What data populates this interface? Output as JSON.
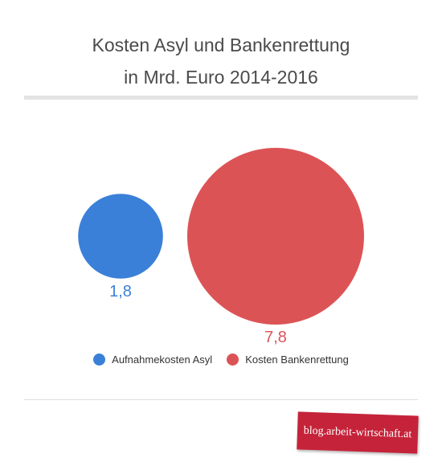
{
  "header": {
    "title_line1": "Kosten Asyl und Bankenrettung",
    "title_line2": "in Mrd. Euro 2014-2016"
  },
  "chart_data": {
    "type": "bubble",
    "title": "Kosten Asyl und Bankenrettung in Mrd. Euro 2014-2016",
    "series": [
      {
        "name": "Aufnahmekosten Asyl",
        "value": 1.8,
        "label": "1,8",
        "color": "#3a80d8"
      },
      {
        "name": "Kosten Bankenrettung",
        "value": 7.8,
        "label": "7,8",
        "color": "#dc5356"
      }
    ],
    "legend_position": "bottom"
  },
  "footer": {
    "badge_text": "blog.arbeit-wirtschaft.at",
    "badge_color": "#c5233a"
  }
}
